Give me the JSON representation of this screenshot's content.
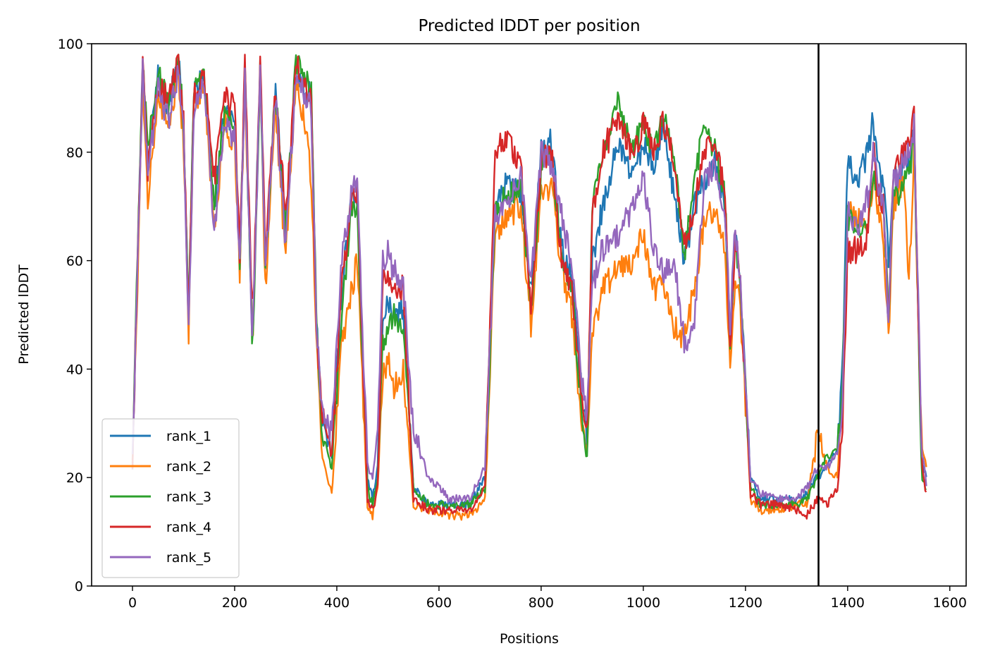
{
  "chart_data": {
    "type": "line",
    "title": "Predicted lDDT per position",
    "xlabel": "Positions",
    "ylabel": "Predicted lDDT",
    "xlim": [
      -80,
      1632
    ],
    "ylim": [
      0,
      100
    ],
    "xticks": [
      0,
      200,
      400,
      600,
      800,
      1000,
      1200,
      1400,
      1600
    ],
    "yticks": [
      0,
      20,
      40,
      60,
      80,
      100
    ],
    "grid": false,
    "legend_position": "lower-left",
    "vline_x": 1343,
    "series": [
      {
        "name": "rank_1",
        "color": "#1f77b4",
        "x": [
          0,
          10,
          20,
          30,
          50,
          70,
          90,
          100,
          110,
          120,
          140,
          160,
          180,
          200,
          210,
          220,
          235,
          250,
          260,
          280,
          300,
          320,
          340,
          350,
          360,
          370,
          390,
          410,
          430,
          440,
          460,
          470,
          480,
          490,
          500,
          510,
          530,
          550,
          580,
          620,
          660,
          690,
          710,
          730,
          760,
          780,
          800,
          820,
          840,
          860,
          880,
          890,
          900,
          920,
          950,
          980,
          1000,
          1020,
          1040,
          1060,
          1080,
          1100,
          1120,
          1140,
          1160,
          1170,
          1180,
          1190,
          1210,
          1230,
          1270,
          1300,
          1320,
          1340,
          1360,
          1380,
          1390,
          1400,
          1420,
          1440,
          1450,
          1460,
          1470,
          1480,
          1490,
          1500,
          1510,
          1520,
          1530,
          1545,
          1555
        ],
        "values": [
          22,
          60,
          95,
          78,
          94,
          88,
          97,
          85,
          50,
          90,
          95,
          70,
          88,
          85,
          60,
          95,
          44,
          97,
          60,
          92,
          65,
          95,
          90,
          91,
          50,
          30,
          24,
          55,
          72,
          70,
          20,
          16,
          22,
          50,
          53,
          48,
          52,
          18,
          15,
          15,
          15,
          20,
          70,
          74,
          72,
          55,
          80,
          82,
          62,
          57,
          35,
          27,
          60,
          70,
          82,
          75,
          82,
          78,
          85,
          72,
          60,
          70,
          75,
          78,
          70,
          45,
          65,
          55,
          20,
          16,
          16,
          16,
          17,
          20,
          22,
          25,
          40,
          78,
          75,
          80,
          86,
          76,
          74,
          60,
          77,
          73,
          80,
          78,
          84,
          23,
          20
        ]
      },
      {
        "name": "rank_2",
        "color": "#ff7f0e",
        "x": [
          0,
          10,
          20,
          30,
          50,
          70,
          90,
          100,
          110,
          120,
          140,
          160,
          180,
          200,
          210,
          220,
          235,
          250,
          260,
          280,
          300,
          320,
          340,
          350,
          360,
          370,
          390,
          410,
          430,
          440,
          460,
          470,
          480,
          490,
          500,
          510,
          530,
          550,
          580,
          620,
          660,
          690,
          710,
          730,
          760,
          780,
          800,
          820,
          840,
          860,
          880,
          890,
          900,
          920,
          950,
          980,
          1000,
          1020,
          1040,
          1060,
          1080,
          1100,
          1120,
          1140,
          1160,
          1170,
          1180,
          1190,
          1210,
          1230,
          1270,
          1300,
          1320,
          1340,
          1360,
          1380,
          1390,
          1400,
          1420,
          1440,
          1450,
          1460,
          1470,
          1480,
          1490,
          1500,
          1510,
          1520,
          1530,
          1545,
          1555
        ],
        "values": [
          24,
          55,
          93,
          72,
          90,
          84,
          94,
          82,
          47,
          88,
          93,
          65,
          85,
          82,
          58,
          92,
          45,
          95,
          55,
          88,
          60,
          93,
          85,
          75,
          45,
          25,
          17,
          45,
          55,
          60,
          15,
          13,
          18,
          38,
          42,
          36,
          40,
          15,
          14,
          13,
          13,
          16,
          65,
          68,
          70,
          48,
          72,
          74,
          58,
          50,
          30,
          25,
          45,
          55,
          58,
          60,
          65,
          55,
          55,
          48,
          45,
          55,
          68,
          70,
          62,
          40,
          58,
          50,
          16,
          14,
          14,
          15,
          15,
          28,
          22,
          20,
          35,
          70,
          68,
          68,
          75,
          70,
          65,
          45,
          70,
          72,
          75,
          55,
          80,
          25,
          22
        ]
      },
      {
        "name": "rank_3",
        "color": "#2ca02c",
        "x": [
          0,
          10,
          20,
          30,
          50,
          70,
          90,
          100,
          110,
          120,
          140,
          160,
          180,
          200,
          210,
          220,
          235,
          250,
          260,
          280,
          300,
          320,
          340,
          350,
          360,
          370,
          390,
          410,
          430,
          440,
          460,
          470,
          480,
          490,
          500,
          510,
          530,
          550,
          580,
          620,
          660,
          690,
          710,
          730,
          760,
          780,
          800,
          820,
          840,
          860,
          880,
          890,
          900,
          920,
          950,
          980,
          1000,
          1020,
          1040,
          1060,
          1080,
          1100,
          1120,
          1140,
          1160,
          1170,
          1180,
          1190,
          1210,
          1230,
          1270,
          1300,
          1320,
          1340,
          1360,
          1380,
          1390,
          1400,
          1420,
          1440,
          1450,
          1460,
          1470,
          1480,
          1490,
          1500,
          1510,
          1520,
          1530,
          1545,
          1555
        ],
        "values": [
          23,
          62,
          97,
          80,
          95,
          89,
          96,
          86,
          50,
          91,
          94,
          70,
          87,
          85,
          60,
          94,
          43,
          96,
          60,
          91,
          65,
          97,
          93,
          92,
          50,
          28,
          22,
          50,
          70,
          68,
          18,
          15,
          20,
          45,
          48,
          50,
          47,
          18,
          15,
          15,
          15,
          18,
          70,
          72,
          74,
          50,
          76,
          80,
          60,
          55,
          32,
          24,
          70,
          80,
          90,
          80,
          86,
          80,
          87,
          80,
          60,
          75,
          85,
          80,
          72,
          45,
          65,
          55,
          18,
          15,
          15,
          15,
          16,
          20,
          24,
          25,
          38,
          68,
          65,
          65,
          75,
          72,
          70,
          50,
          75,
          72,
          76,
          75,
          83,
          20,
          18
        ]
      },
      {
        "name": "rank_4",
        "color": "#d62728",
        "x": [
          0,
          10,
          20,
          30,
          50,
          70,
          90,
          100,
          110,
          120,
          140,
          160,
          180,
          200,
          210,
          220,
          235,
          250,
          260,
          280,
          300,
          320,
          340,
          350,
          360,
          370,
          390,
          410,
          430,
          440,
          460,
          470,
          480,
          490,
          500,
          510,
          530,
          550,
          580,
          620,
          660,
          690,
          710,
          730,
          760,
          780,
          800,
          820,
          840,
          860,
          880,
          890,
          900,
          920,
          950,
          980,
          1000,
          1020,
          1040,
          1060,
          1080,
          1100,
          1120,
          1140,
          1160,
          1170,
          1180,
          1190,
          1210,
          1230,
          1270,
          1300,
          1320,
          1340,
          1360,
          1380,
          1390,
          1400,
          1420,
          1440,
          1450,
          1460,
          1470,
          1480,
          1490,
          1500,
          1510,
          1520,
          1530,
          1545,
          1555
        ],
        "values": [
          22,
          60,
          96,
          76,
          93,
          90,
          97,
          86,
          48,
          90,
          95,
          75,
          90,
          88,
          62,
          96,
          48,
          97,
          62,
          92,
          68,
          96,
          92,
          90,
          48,
          33,
          25,
          55,
          72,
          73,
          16,
          14,
          18,
          56,
          58,
          55,
          55,
          16,
          14,
          14,
          14,
          18,
          80,
          83,
          78,
          52,
          78,
          80,
          60,
          55,
          35,
          28,
          68,
          80,
          86,
          80,
          85,
          80,
          86,
          78,
          62,
          70,
          80,
          83,
          72,
          44,
          65,
          55,
          17,
          15,
          15,
          14,
          13,
          16,
          15,
          18,
          30,
          62,
          62,
          65,
          82,
          72,
          70,
          48,
          78,
          78,
          80,
          82,
          86,
          22,
          16
        ]
      },
      {
        "name": "rank_5",
        "color": "#9467bd",
        "x": [
          0,
          10,
          20,
          30,
          50,
          70,
          90,
          100,
          110,
          120,
          140,
          160,
          180,
          200,
          210,
          220,
          235,
          250,
          260,
          280,
          300,
          320,
          340,
          350,
          360,
          370,
          390,
          410,
          430,
          440,
          460,
          470,
          480,
          490,
          500,
          510,
          530,
          550,
          580,
          620,
          660,
          690,
          710,
          730,
          760,
          780,
          800,
          820,
          840,
          860,
          880,
          890,
          900,
          920,
          950,
          980,
          1000,
          1020,
          1040,
          1060,
          1080,
          1100,
          1120,
          1140,
          1160,
          1170,
          1180,
          1190,
          1210,
          1230,
          1270,
          1300,
          1320,
          1340,
          1360,
          1380,
          1390,
          1400,
          1420,
          1440,
          1450,
          1460,
          1470,
          1480,
          1490,
          1500,
          1510,
          1520,
          1530,
          1545,
          1555
        ],
        "values": [
          25,
          58,
          95,
          75,
          92,
          86,
          95,
          84,
          47,
          88,
          93,
          66,
          85,
          83,
          58,
          93,
          44,
          95,
          58,
          90,
          62,
          95,
          90,
          88,
          50,
          32,
          28,
          60,
          73,
          75,
          22,
          20,
          28,
          60,
          62,
          58,
          56,
          28,
          20,
          16,
          16,
          22,
          68,
          70,
          76,
          55,
          80,
          78,
          68,
          60,
          38,
          30,
          55,
          62,
          65,
          70,
          75,
          62,
          58,
          60,
          45,
          48,
          75,
          78,
          68,
          48,
          66,
          55,
          20,
          17,
          16,
          16,
          18,
          22,
          22,
          24,
          35,
          70,
          65,
          72,
          80,
          74,
          70,
          48,
          76,
          76,
          78,
          80,
          85,
          25,
          18
        ]
      }
    ]
  }
}
